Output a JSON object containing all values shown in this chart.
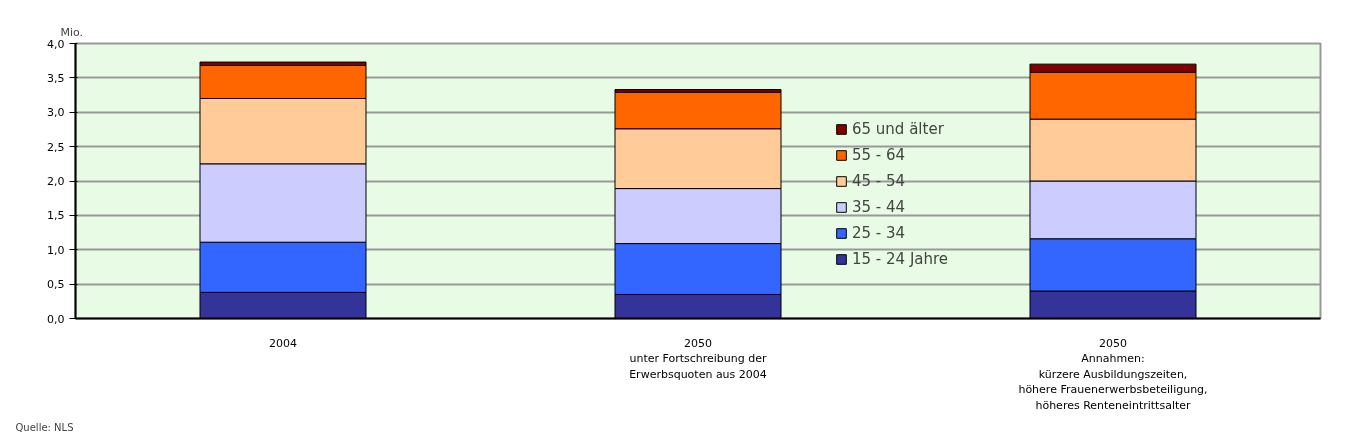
{
  "chart_data": {
    "type": "bar",
    "stacked": true,
    "ylabel": "Mio.",
    "categories": [
      "2004",
      "2050\nunter Fortschreibung der\nErwerbsquoten aus 2004",
      "2050\nAnnahmen:\nkürzere Ausbildungszeiten,\nhöhere Frauenerwerbsbeteiligung,\nhöheres Renteneintrittsalter"
    ],
    "series": [
      {
        "name": "15 - 24 Jahre",
        "color": "#333399",
        "values": [
          0.38,
          0.35,
          0.4
        ]
      },
      {
        "name": "25 - 34",
        "color": "#3366ff",
        "values": [
          0.73,
          0.74,
          0.76
        ]
      },
      {
        "name": "35 - 44",
        "color": "#ccccff",
        "values": [
          1.14,
          0.8,
          0.84
        ]
      },
      {
        "name": "45 - 54",
        "color": "#ffcc99",
        "values": [
          0.95,
          0.87,
          0.9
        ]
      },
      {
        "name": "55 - 64",
        "color": "#ff6600",
        "values": [
          0.48,
          0.53,
          0.68
        ]
      },
      {
        "name": "65 und älter",
        "color": "#800000",
        "values": [
          0.05,
          0.04,
          0.12
        ]
      }
    ],
    "ylim": [
      0,
      4
    ],
    "yticks": [
      {
        "value": 0,
        "label": "0,0"
      },
      {
        "value": 0.5,
        "label": "0,5"
      },
      {
        "value": 1,
        "label": "1,0"
      },
      {
        "value": 1.5,
        "label": "1,5"
      },
      {
        "value": 2,
        "label": "2,0"
      },
      {
        "value": 2.5,
        "label": "2,5"
      },
      {
        "value": 3,
        "label": "3,0"
      },
      {
        "value": 3.5,
        "label": "3,5"
      },
      {
        "value": 4,
        "label": "4,0"
      }
    ],
    "grid": "y",
    "legend": "right",
    "annotations": [
      "Quelle: NLS"
    ]
  }
}
